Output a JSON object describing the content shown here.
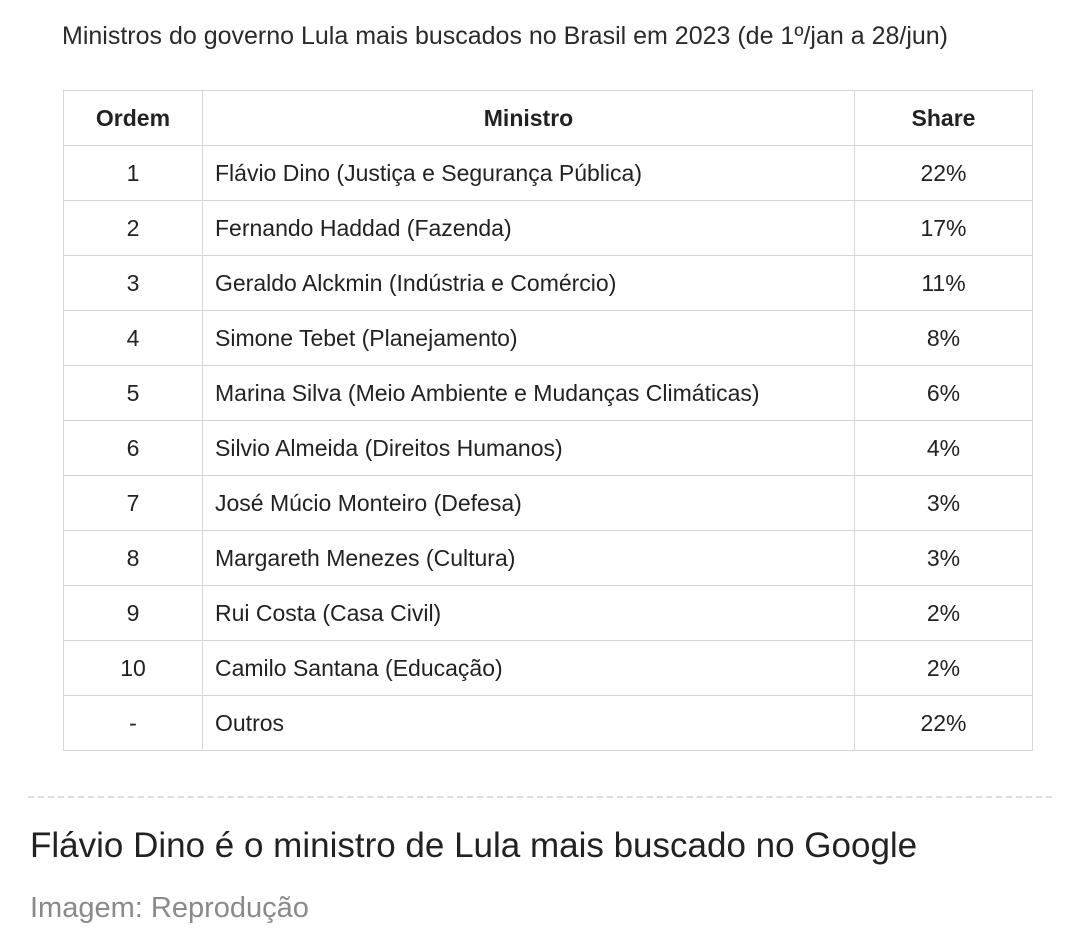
{
  "title": "Ministros do governo Lula mais buscados no Brasil em 2023 (de 1º/jan a 28/jun)",
  "table": {
    "header": [
      "Ordem",
      "Ministro",
      "Share"
    ],
    "rows": [
      [
        "1",
        "Flávio Dino (Justiça e Segurança Pública)",
        "22%"
      ],
      [
        "2",
        "Fernando Haddad (Fazenda)",
        "17%"
      ],
      [
        "3",
        "Geraldo Alckmin (Indústria e Comércio)",
        "11%"
      ],
      [
        "4",
        "Simone Tebet (Planejamento)",
        "8%"
      ],
      [
        "5",
        "Marina Silva (Meio Ambiente e Mudanças Climáticas)",
        "6%"
      ],
      [
        "6",
        "Silvio Almeida (Direitos Humanos)",
        "4%"
      ],
      [
        "7",
        "José Múcio Monteiro (Defesa)",
        "3%"
      ],
      [
        "8",
        "Margareth Menezes (Cultura)",
        "3%"
      ],
      [
        "9",
        "Rui Costa (Casa Civil)",
        "2%"
      ],
      [
        "10",
        "Camilo Santana (Educação)",
        "2%"
      ],
      [
        "-",
        "Outros",
        "22%"
      ]
    ]
  },
  "caption": "Flávio Dino é o ministro de Lula mais buscado no Google",
  "credit": "Imagem: Reprodução"
}
